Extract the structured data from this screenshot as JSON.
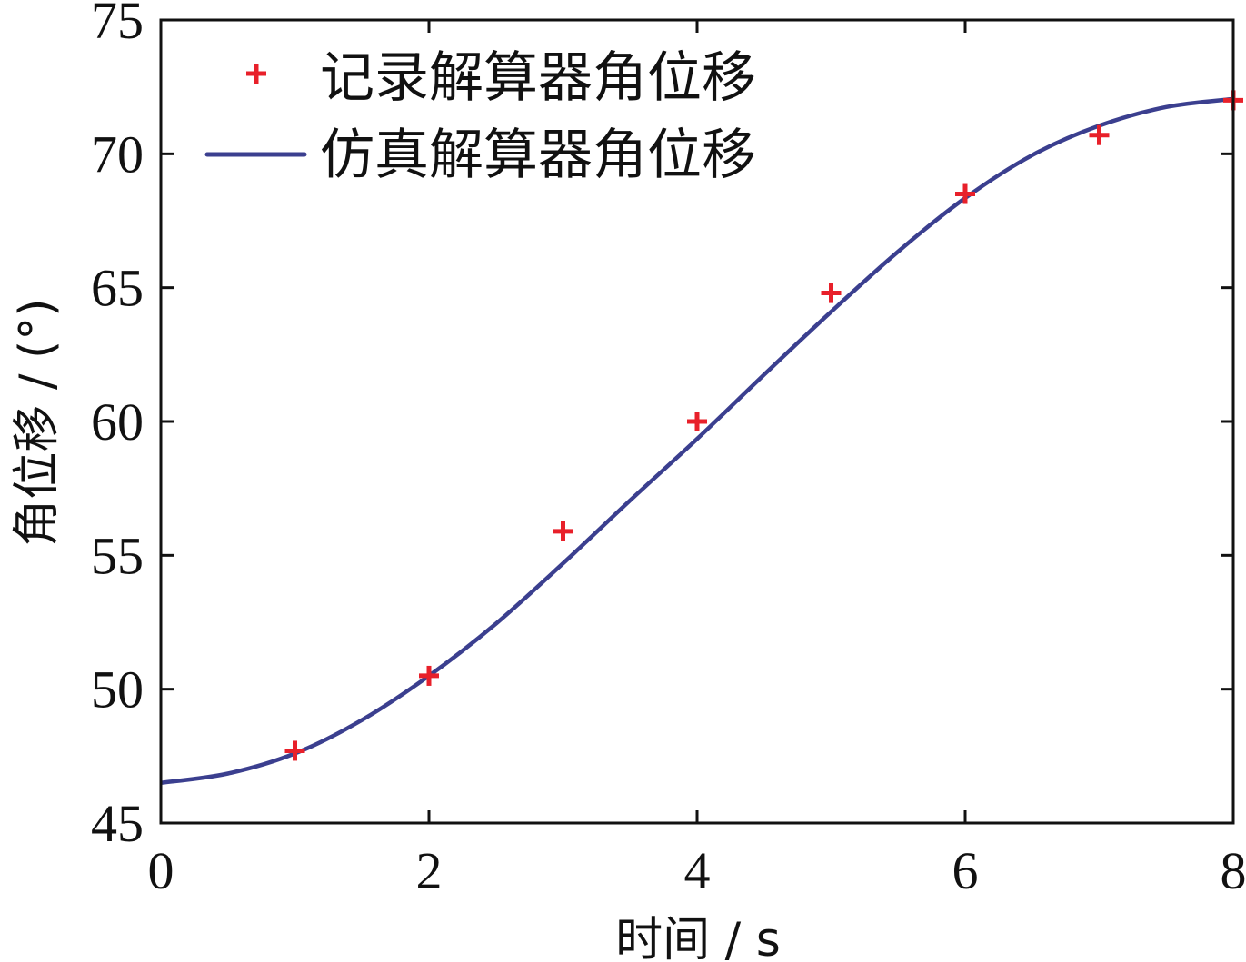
{
  "chart_data": {
    "type": "line",
    "xlabel": "时间 / s",
    "ylabel": "角位移 / (°)",
    "xlim": [
      0,
      8
    ],
    "ylim": [
      45,
      75
    ],
    "x_ticks": [
      "0",
      "2",
      "4",
      "6",
      "8"
    ],
    "y_ticks": [
      "45",
      "50",
      "55",
      "60",
      "65",
      "70",
      "75"
    ],
    "legend_position": "top-left",
    "grid": false,
    "series": [
      {
        "name": "记录解算器角位移",
        "type": "scatter",
        "marker": "plus",
        "color": "#e8202a",
        "x": [
          1,
          2,
          3,
          4,
          5,
          6,
          7,
          8
        ],
        "y": [
          47.7,
          50.5,
          55.9,
          60.0,
          64.8,
          68.5,
          70.7,
          72.0
        ]
      },
      {
        "name": "仿真解算器角位移",
        "type": "line",
        "color": "#3b3f8f",
        "x": [
          0,
          0.5,
          1,
          1.5,
          2,
          2.5,
          3,
          3.5,
          4,
          4.5,
          5,
          5.5,
          6,
          6.5,
          7,
          7.5,
          8
        ],
        "y": [
          46.5,
          46.85,
          47.6,
          48.85,
          50.5,
          52.45,
          54.7,
          57.05,
          59.35,
          61.75,
          64.1,
          66.35,
          68.35,
          69.95,
          71.05,
          71.75,
          72.05
        ]
      }
    ]
  }
}
